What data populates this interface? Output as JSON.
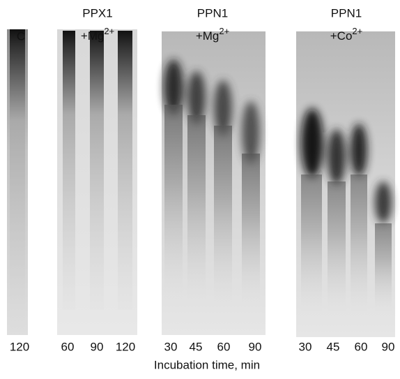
{
  "panels": [
    {
      "label": "C",
      "lanes": [
        "120"
      ]
    },
    {
      "enzyme": "PPX1",
      "ion": "+Mg",
      "charge": "2+",
      "lanes": [
        "60",
        "90",
        "120"
      ]
    },
    {
      "enzyme": "PPN1",
      "ion": "+Mg",
      "charge": "2+",
      "lanes": [
        "30",
        "45",
        "60",
        "90"
      ]
    },
    {
      "enzyme": "PPN1",
      "ion": "+Co",
      "charge": "2+",
      "lanes": [
        "30",
        "45",
        "60",
        "90"
      ]
    }
  ],
  "x_axis_label": "Incubation time, min"
}
